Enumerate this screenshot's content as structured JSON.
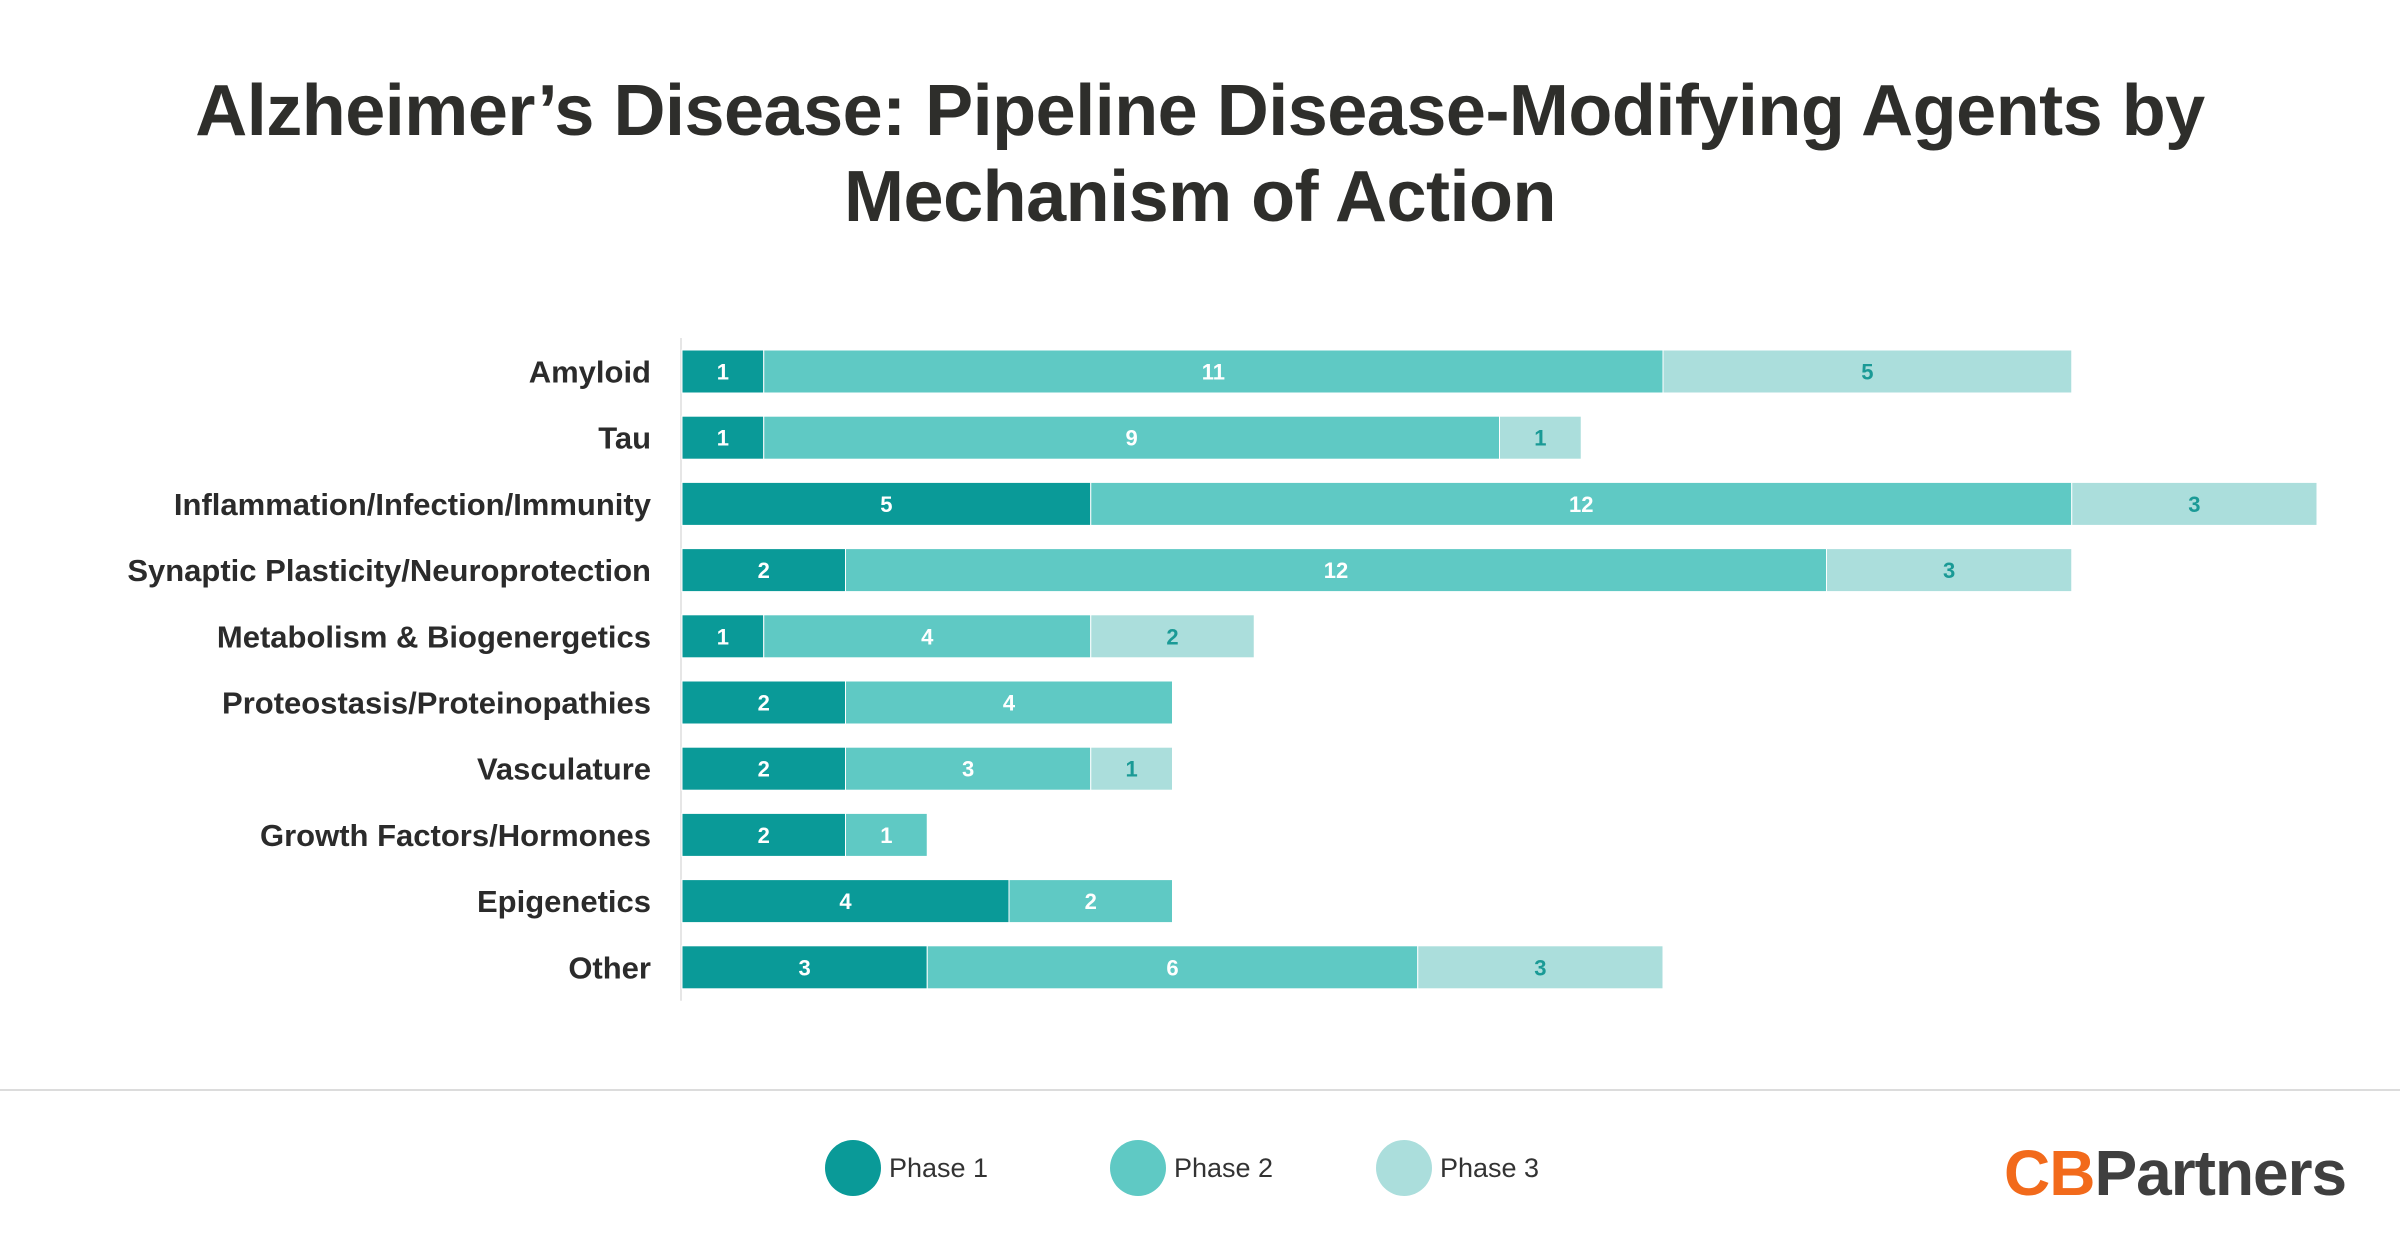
{
  "title": "Alzheimer’s Disease: Pipeline Disease-Modifying Agents by Mechanism of Action",
  "colors": {
    "phase1": "#0a9a98",
    "phase2": "#5fc9c4",
    "phase3": "#abdedc",
    "label_dark_bg": "#ffffff",
    "label_light_bg": "#1a9a96",
    "category_text": "#2b2b2b",
    "logo_orange": "#f26a1b",
    "logo_gray": "#3f3f3f"
  },
  "chart_data": {
    "type": "bar",
    "orientation": "horizontal",
    "stacked": true,
    "categories": [
      "Amyloid",
      "Tau",
      "Inflammation/Infection/Immunity",
      "Synaptic Plasticity/Neuroprotection",
      "Metabolism & Biogenergetics",
      "Proteostasis/Proteinopathies",
      "Vasculature",
      "Growth Factors/Hormones",
      "Epigenetics",
      "Other"
    ],
    "series": [
      {
        "name": "Phase 1",
        "values": [
          1,
          1,
          5,
          2,
          1,
          2,
          2,
          2,
          4,
          3
        ]
      },
      {
        "name": "Phase 2",
        "values": [
          11,
          9,
          12,
          12,
          4,
          4,
          3,
          1,
          2,
          6
        ]
      },
      {
        "name": "Phase 3",
        "values": [
          5,
          1,
          3,
          3,
          2,
          0,
          1,
          0,
          0,
          3
        ]
      }
    ],
    "xlim": [
      0,
      20
    ],
    "grid": false,
    "legend": "bottom",
    "data_labels": true
  },
  "legend": {
    "items": [
      {
        "label": "Phase 1",
        "color": "#0a9a98"
      },
      {
        "label": "Phase 2",
        "color": "#5fc9c4"
      },
      {
        "label": "Phase 3",
        "color": "#abdedc"
      }
    ]
  },
  "logo": {
    "cb": "CB",
    "partners": "Partners"
  }
}
